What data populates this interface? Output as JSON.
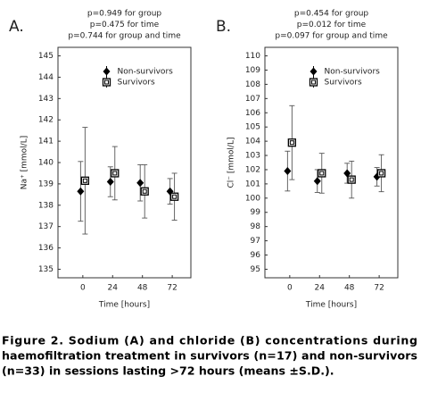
{
  "chart_data": [
    {
      "type": "scatter",
      "panel_label": "A.",
      "annotations": [
        "p=0.949 for group",
        "p=0.475 for time",
        "p=0.744 for group and time"
      ],
      "x_label": "Time [hours]",
      "y_label": "Na⁺ [mmol/L]",
      "xlim": [
        -20,
        87
      ],
      "xticks": [
        0,
        24,
        48,
        72
      ],
      "ylim": [
        134.6,
        145.4
      ],
      "yticks": [
        135,
        136,
        137,
        138,
        139,
        140,
        141,
        142,
        143,
        144,
        145
      ],
      "legend": "top-center",
      "series": [
        {
          "name": "Non-survivors",
          "marker": "diamond",
          "color": "#000000",
          "x": [
            0,
            24,
            48,
            72
          ],
          "values": [
            138.65,
            139.1,
            139.05,
            138.65
          ],
          "errors": [
            1.4,
            0.7,
            0.85,
            0.6
          ]
        },
        {
          "name": "Survivors",
          "marker": "square",
          "color": "#000000",
          "x": [
            0,
            24,
            48,
            72
          ],
          "values": [
            139.15,
            139.5,
            138.65,
            138.4
          ],
          "errors": [
            2.5,
            1.25,
            1.25,
            1.1
          ]
        }
      ]
    },
    {
      "type": "scatter",
      "panel_label": "B.",
      "annotations": [
        "p=0.454 for group",
        "p=0.012 for time",
        "p=0.097 for group and time"
      ],
      "x_label": "Time [hours]",
      "y_label": "Cl⁻ [mmol/L]",
      "xlim": [
        -20,
        87
      ],
      "xticks": [
        0,
        24,
        48,
        72
      ],
      "ylim": [
        94.4,
        110.6
      ],
      "yticks": [
        95,
        96,
        97,
        98,
        99,
        100,
        101,
        102,
        103,
        104,
        105,
        106,
        107,
        108,
        109,
        110
      ],
      "legend": "top-center",
      "series": [
        {
          "name": "Non-survivors",
          "marker": "diamond",
          "color": "#000000",
          "x": [
            0,
            24,
            48,
            72
          ],
          "values": [
            101.9,
            101.2,
            101.75,
            101.5
          ],
          "errors": [
            1.4,
            0.8,
            0.7,
            0.65
          ]
        },
        {
          "name": "Survivors",
          "marker": "square",
          "color": "#000000",
          "x": [
            0,
            24,
            48,
            72
          ],
          "values": [
            103.9,
            101.75,
            101.3,
            101.75
          ],
          "errors": [
            2.6,
            1.4,
            1.3,
            1.3
          ]
        }
      ]
    }
  ],
  "caption": [
    "Figure 2. Sodium (A) and chloride (B) concentrations during",
    "haemofiltration treatment in survivors (n=17) and non-survivors",
    "(n=33) in sessions lasting >72 hours (means ±S.D.)."
  ]
}
